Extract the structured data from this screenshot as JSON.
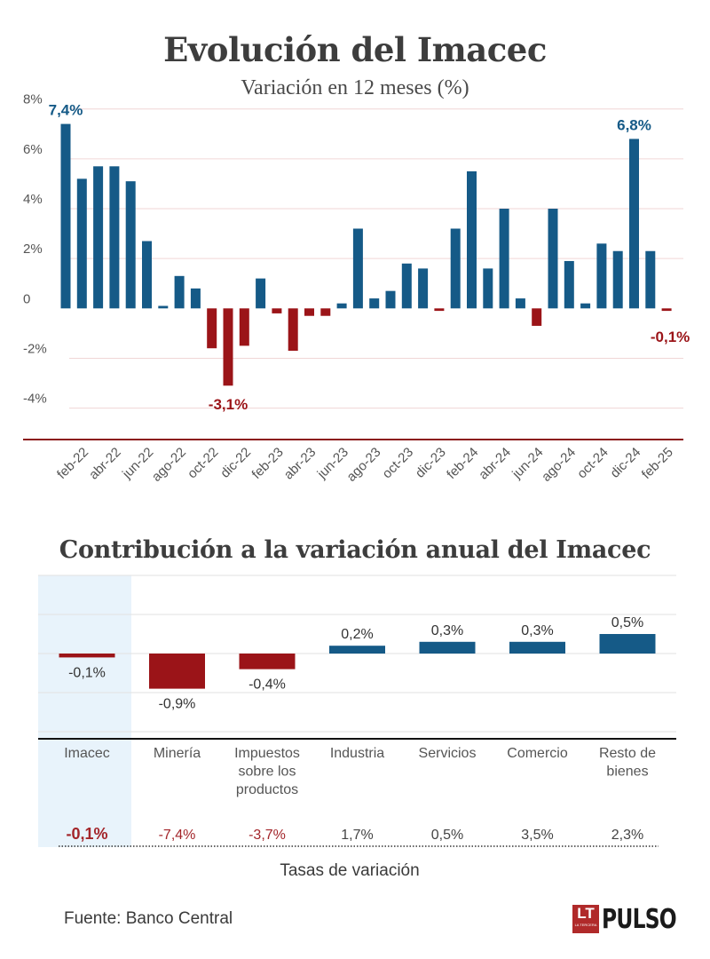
{
  "chart1_title": "Evolución del Imacec",
  "chart1_subtitle": "Variación en 12 meses (%)",
  "chart2_title": "Contribución a la variación anual del Imacec",
  "tasas_label": "Tasas de variación",
  "source": "Fuente: Banco Central",
  "logo": {
    "lt": "LT",
    "lt_small": "LA TERCERA",
    "pulso": "PULSO"
  },
  "colors": {
    "positive": "#155a87",
    "negative": "#9b1418",
    "grid": "#f0d6d6",
    "axis": "#8b1a1a",
    "highlight_bg": "#e8f3fb"
  },
  "chart_data": [
    {
      "type": "bar",
      "title": "Evolución del Imacec",
      "subtitle": "Variación en 12 meses (%)",
      "xlabel": "",
      "ylabel": "",
      "ylim": [
        -5,
        8
      ],
      "yticks": [
        -4,
        -2,
        0,
        2,
        4,
        6,
        8
      ],
      "ytick_labels": [
        "-4%",
        "-2%",
        "0",
        "2%",
        "4%",
        "6%",
        "8%"
      ],
      "grid": true,
      "categories": [
        "ene-22",
        "feb-22",
        "mar-22",
        "abr-22",
        "may-22",
        "jun-22",
        "jul-22",
        "ago-22",
        "sep-22",
        "oct-22",
        "nov-22",
        "dic-22",
        "ene-23",
        "feb-23",
        "mar-23",
        "abr-23",
        "may-23",
        "jun-23",
        "jul-23",
        "ago-23",
        "sep-23",
        "oct-23",
        "nov-23",
        "dic-23",
        "ene-24",
        "feb-24",
        "mar-24",
        "abr-24",
        "may-24",
        "jun-24",
        "jul-24",
        "ago-24",
        "sep-24",
        "oct-24",
        "nov-24",
        "dic-24",
        "ene-25",
        "feb-25"
      ],
      "tick_labels": [
        "feb-22",
        "abr-22",
        "jun-22",
        "ago-22",
        "oct-22",
        "dic-22",
        "feb-23",
        "abr-23",
        "jun-23",
        "ago-23",
        "oct-23",
        "dic-23",
        "feb-24",
        "abr-24",
        "jun-24",
        "ago-24",
        "oct-24",
        "dic-24",
        "feb-25"
      ],
      "values": [
        7.4,
        5.2,
        5.7,
        5.7,
        5.1,
        2.7,
        0.1,
        1.3,
        0.8,
        -1.6,
        -3.1,
        -1.5,
        1.2,
        -0.2,
        -1.7,
        -0.3,
        -0.3,
        0.2,
        3.2,
        0.4,
        0.7,
        1.8,
        1.6,
        -0.1,
        3.2,
        5.5,
        1.6,
        4.0,
        0.4,
        -0.7,
        4.0,
        1.9,
        0.2,
        2.6,
        2.3,
        6.8,
        2.3,
        -0.1
      ],
      "annotations": [
        {
          "index": 0,
          "text": "7,4%"
        },
        {
          "index": 10,
          "text": "-3,1%"
        },
        {
          "index": 35,
          "text": "6,8%"
        },
        {
          "index": 37,
          "text": "-0,1%"
        }
      ]
    },
    {
      "type": "bar",
      "title": "Contribución a la variación anual del Imacec",
      "xlabel": "Tasas de variación",
      "ylabel": "",
      "ylim": [
        -2.2,
        2.2
      ],
      "grid": true,
      "categories": [
        "Imacec",
        "Minería",
        "Impuestos sobre los productos",
        "Industria",
        "Servicios",
        "Comercio",
        "Resto de bienes"
      ],
      "category_lines": [
        [
          "Imacec"
        ],
        [
          "Minería"
        ],
        [
          "Impuestos",
          "sobre los",
          "productos"
        ],
        [
          "Industria"
        ],
        [
          "Servicios"
        ],
        [
          "Comercio"
        ],
        [
          "Resto de",
          "bienes"
        ]
      ],
      "values": [
        -0.1,
        -0.9,
        -0.4,
        0.2,
        0.3,
        0.3,
        0.5
      ],
      "value_labels": [
        "-0,1%",
        "-0,9%",
        "-0,4%",
        "0,2%",
        "0,3%",
        "0,3%",
        "0,5%"
      ],
      "rates": [
        "-0,1%",
        "-7,4%",
        "-3,7%",
        "1,7%",
        "0,5%",
        "3,5%",
        "2,3%"
      ],
      "rate_values": [
        -0.1,
        -7.4,
        -3.7,
        1.7,
        0.5,
        3.5,
        2.3
      ],
      "highlighted_category": "Imacec"
    }
  ]
}
